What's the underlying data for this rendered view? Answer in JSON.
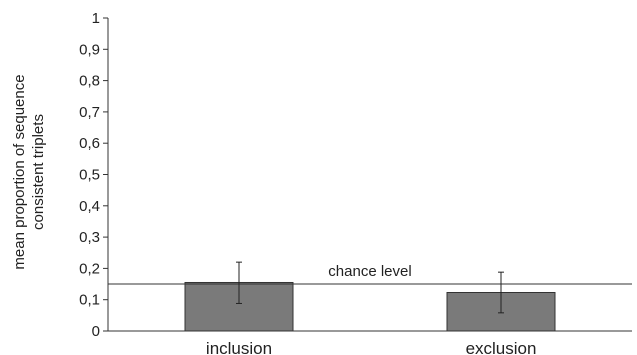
{
  "chart_data": {
    "type": "bar",
    "categories": [
      "inclusion",
      "exclusion"
    ],
    "values": [
      0.155,
      0.123
    ],
    "error_low": [
      0.088,
      0.058
    ],
    "error_high": [
      0.22,
      0.188
    ],
    "ylabel_lines": [
      "mean proportion of sequence",
      "consistent triplets"
    ],
    "ylim": [
      0,
      1
    ],
    "yticks": [
      "0",
      "0,1",
      "0,2",
      "0,3",
      "0,4",
      "0,5",
      "0,6",
      "0,7",
      "0,8",
      "0,9",
      "1"
    ],
    "reference_line": {
      "value": 0.15,
      "label": "chance level"
    },
    "bar_color": "#7a7a7a",
    "grid": false
  }
}
